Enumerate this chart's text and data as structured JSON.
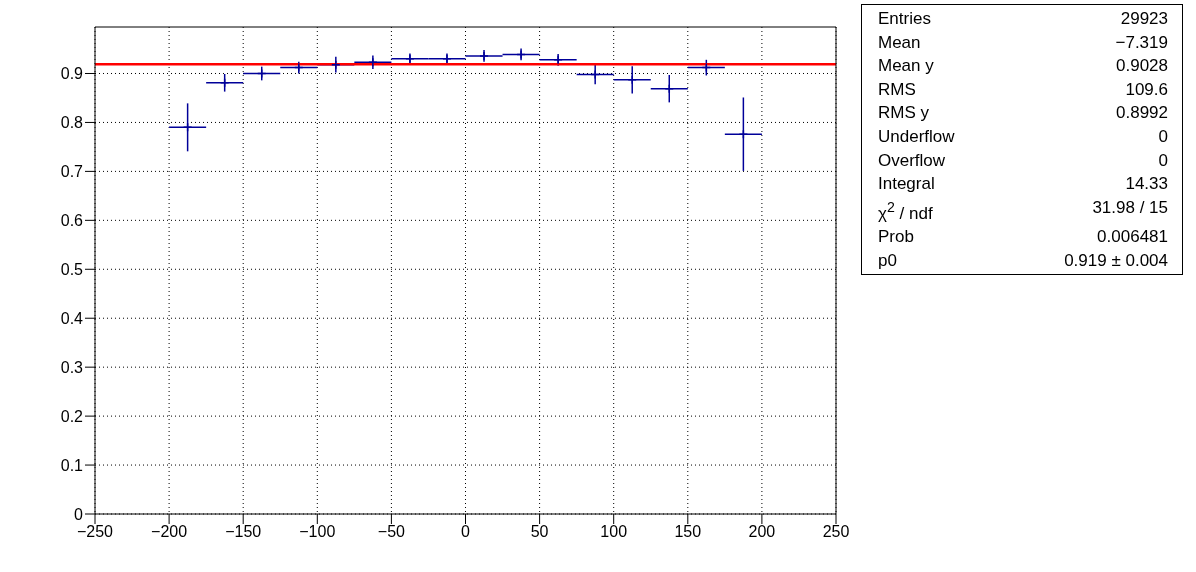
{
  "chart_data": {
    "type": "scatter",
    "x": [
      -187.5,
      -162.5,
      -137.5,
      -112.5,
      -87.5,
      -62.5,
      -37.5,
      -12.5,
      12.5,
      37.5,
      62.5,
      87.5,
      112.5,
      137.5,
      162.5,
      187.5
    ],
    "series": [
      {
        "type": "scatter",
        "marker": "cross",
        "color": "#000099",
        "values": [
          0.79,
          0.881,
          0.9,
          0.912,
          0.918,
          0.923,
          0.93,
          0.93,
          0.936,
          0.939,
          0.928,
          0.898,
          0.887,
          0.869,
          0.912,
          0.776
        ],
        "errors": [
          0.049,
          0.018,
          0.014,
          0.012,
          0.016,
          0.014,
          0.011,
          0.011,
          0.012,
          0.012,
          0.012,
          0.02,
          0.028,
          0.028,
          0.016,
          0.075
        ],
        "xerrors": [
          12.5,
          12.5,
          12.5,
          12.5,
          12.5,
          12.5,
          12.5,
          12.5,
          12.5,
          12.5,
          12.5,
          12.5,
          12.5,
          12.5,
          12.5,
          12.5
        ]
      },
      {
        "type": "line",
        "marker": "none",
        "color": "#ff0000",
        "x": [
          -250,
          250
        ],
        "values": [
          0.919,
          0.919
        ]
      }
    ],
    "xlim": [
      -250,
      250
    ],
    "xticks": [
      -250,
      -200,
      -150,
      -100,
      -50,
      0,
      50,
      100,
      150,
      200,
      250
    ],
    "ylim": [
      0,
      0.995
    ],
    "yticks": [
      0,
      0.1,
      0.2,
      0.3,
      0.4,
      0.5,
      0.6,
      0.7,
      0.8,
      0.9
    ],
    "grid": true,
    "legend": false,
    "annotations": [
      "Entries",
      "29923",
      "Mean",
      "−7.319",
      "Mean y",
      "0.9028",
      "RMS",
      "109.6",
      "RMS y",
      "0.8992",
      "Underflow",
      "0",
      "Overflow",
      "0",
      "Integral",
      "14.33",
      "χ$^{2}$ / ndf",
      "31.98 / 15",
      "Prob",
      "0.006481",
      "p0",
      "0.919 ± 0.004"
    ]
  }
}
